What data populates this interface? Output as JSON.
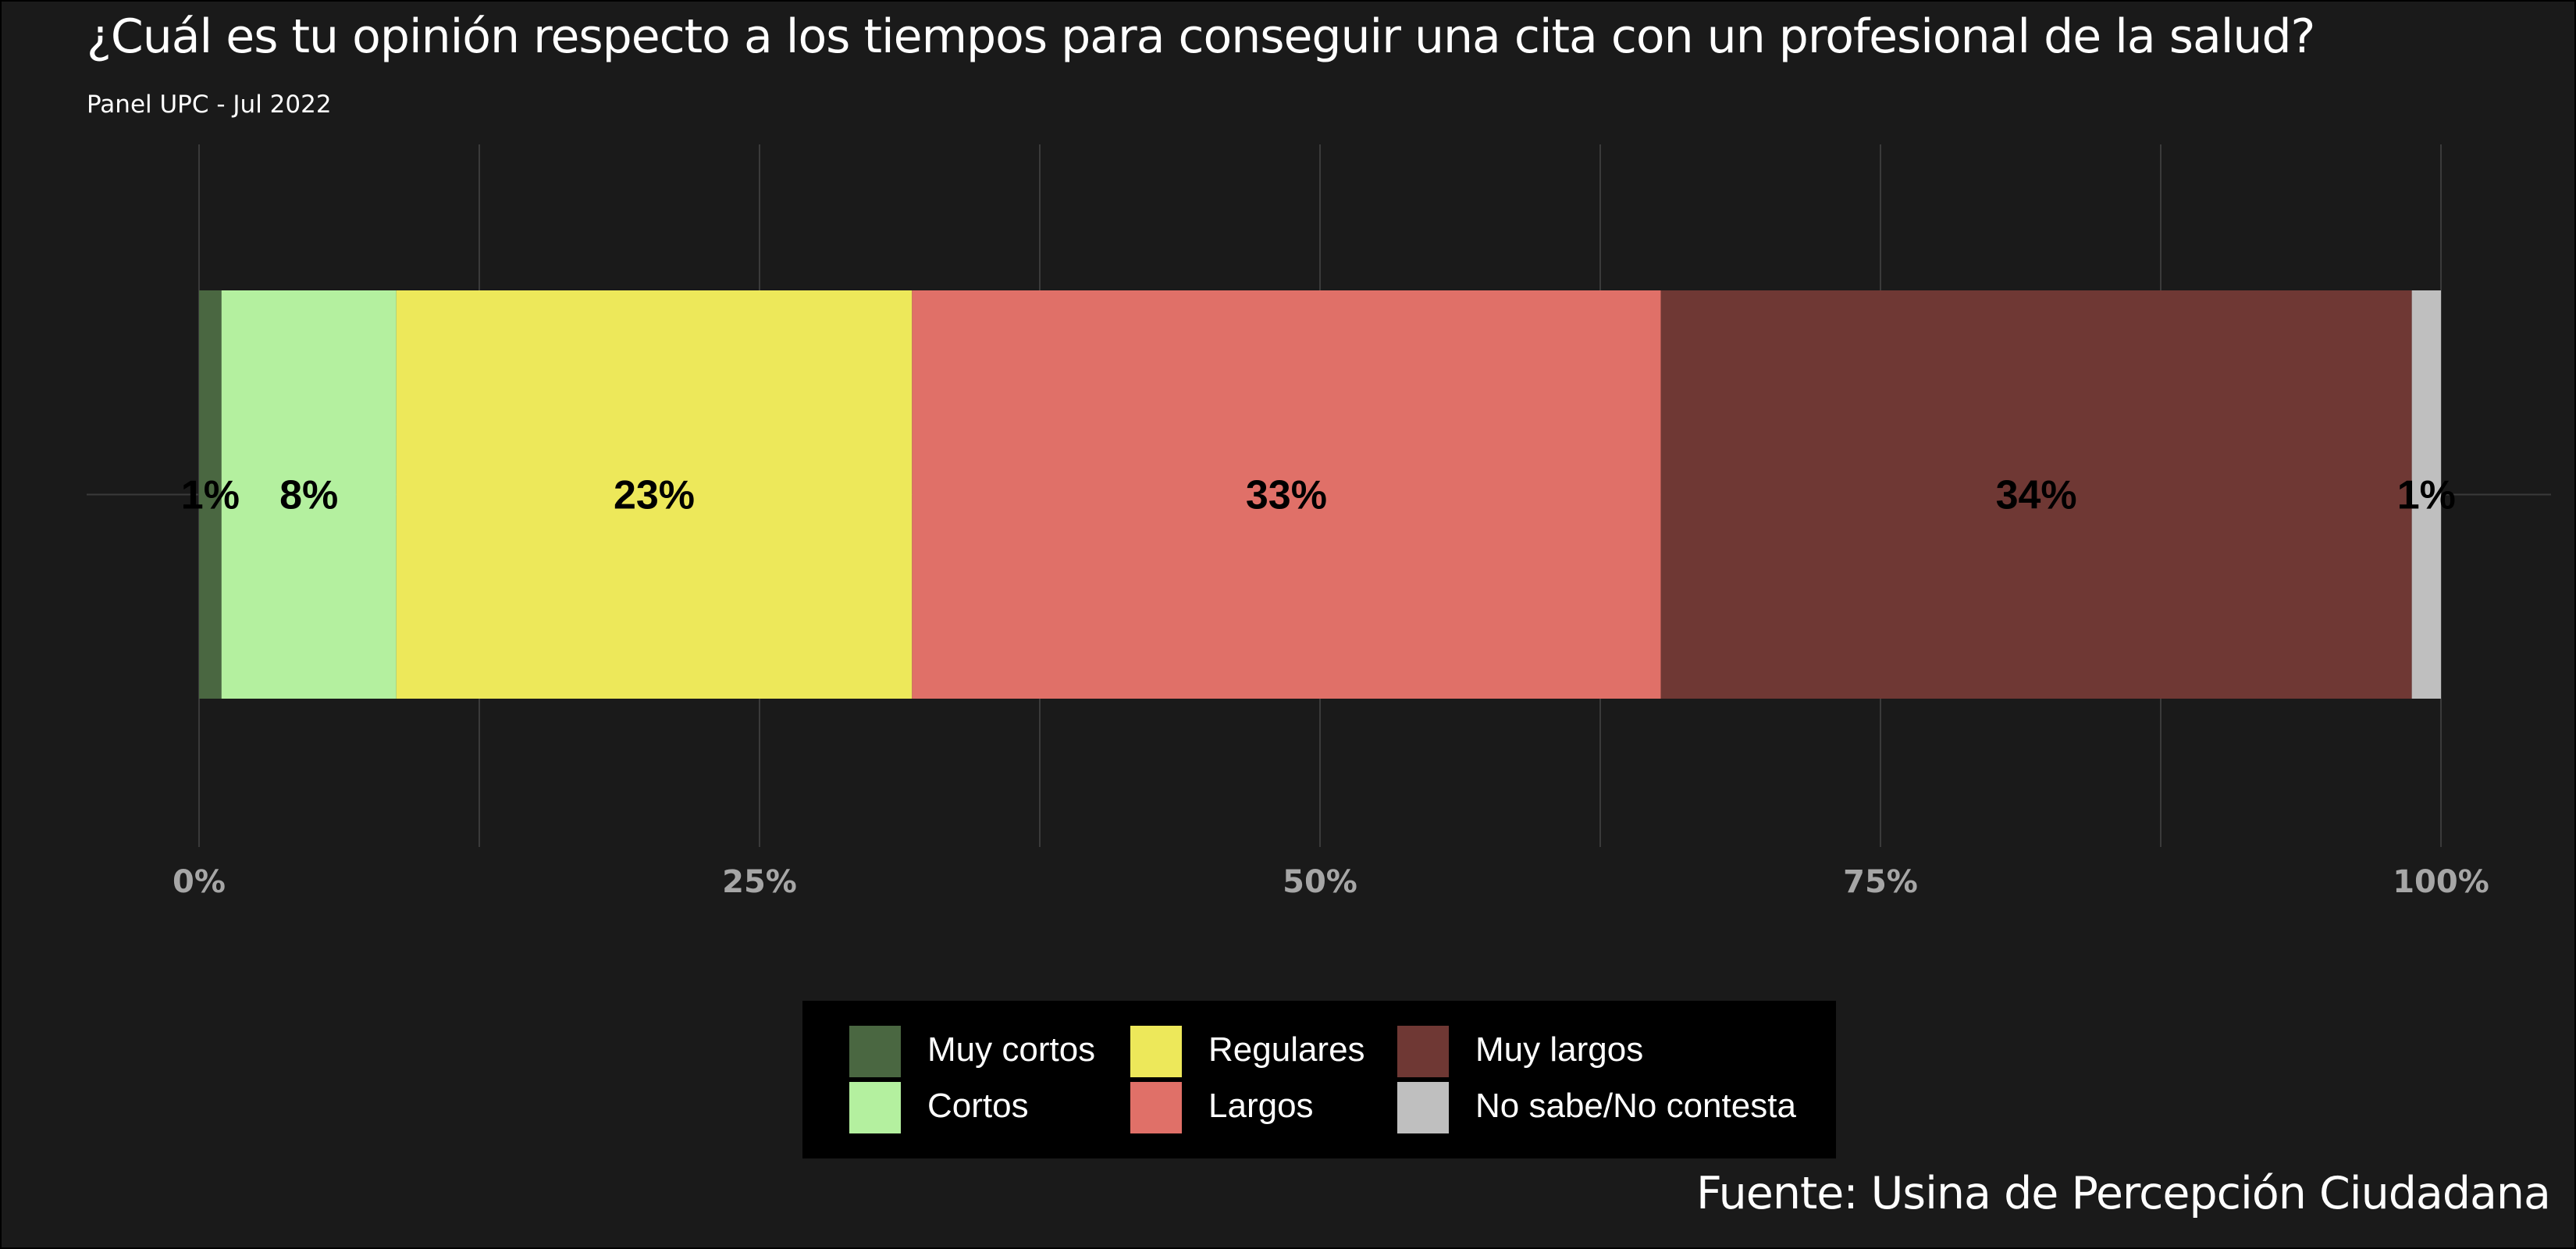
{
  "chart_data": {
    "type": "bar",
    "orientation": "horizontal",
    "stacked": true,
    "title": "¿Cuál es tu opinión respecto a los tiempos para conseguir una cita con un profesional de la salud?",
    "subtitle": "Panel UPC - Jul 2022",
    "caption": "Fuente: Usina de Percepción Ciudadana",
    "xlim": [
      0,
      100
    ],
    "x_ticks": [
      "0%",
      "25%",
      "50%",
      "75%",
      "100%"
    ],
    "x_tick_values": [
      0,
      25,
      50,
      75,
      100
    ],
    "grid": true,
    "legend_position": "bottom",
    "series": [
      {
        "name": "Muy cortos",
        "value": 1,
        "label": "1%",
        "color": "#4a6741"
      },
      {
        "name": "Cortos",
        "value": 7.8,
        "label": "8%",
        "color": "#b4f09f"
      },
      {
        "name": "Regulares",
        "value": 23,
        "label": "23%",
        "color": "#ede85a"
      },
      {
        "name": "Largos",
        "value": 33.4,
        "label": "33%",
        "color": "#e07068"
      },
      {
        "name": "Muy largos",
        "value": 33.5,
        "label": "34%",
        "color": "#6f3834"
      },
      {
        "name": "No sabe/No contesta",
        "value": 1.3,
        "label": "1%",
        "color": "#bfbfbf"
      }
    ]
  },
  "colors": {
    "background": "#1a1a1a",
    "grid": "#3a3a3a",
    "tick_text": "#a6a6a6",
    "legend_bg": "#000000"
  }
}
